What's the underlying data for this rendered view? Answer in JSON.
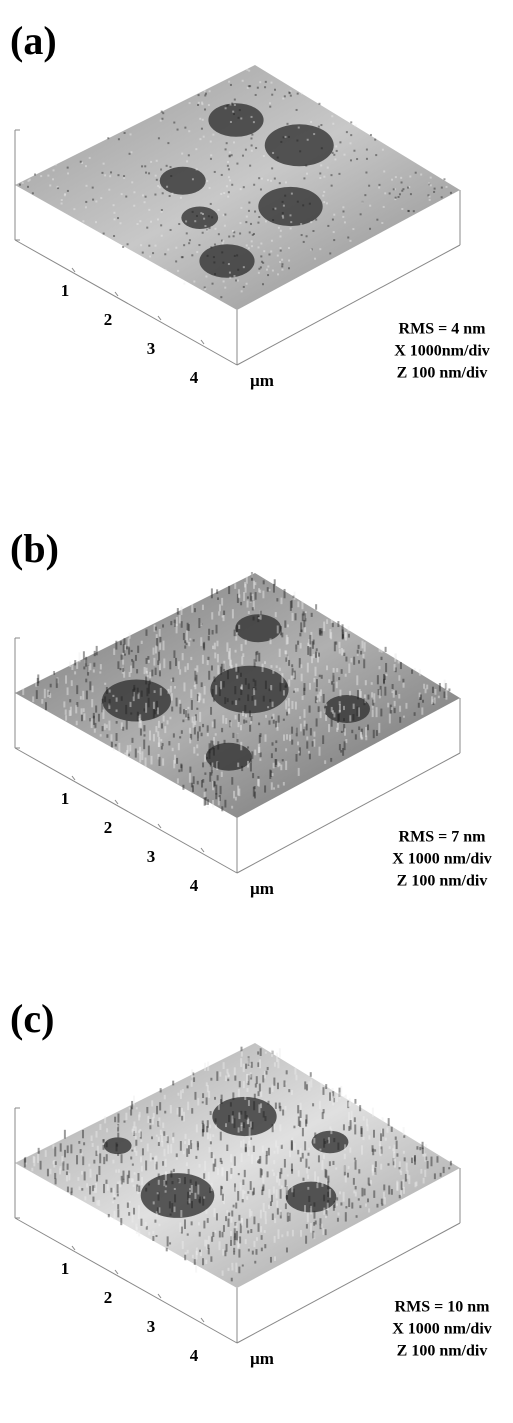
{
  "panels": [
    {
      "label": "(a)",
      "ticks": [
        "1",
        "2",
        "3",
        "4"
      ],
      "unit": "µm",
      "annotations": [
        "RMS = 4 nm",
        "X 1000nm/div",
        "Z 100 nm/div"
      ]
    },
    {
      "label": "(b)",
      "ticks": [
        "1",
        "2",
        "3",
        "4"
      ],
      "unit": "µm",
      "annotations": [
        "RMS = 7 nm",
        "X 1000 nm/div",
        "Z 100 nm/div"
      ]
    },
    {
      "label": "(c)",
      "ticks": [
        "1",
        "2",
        "3",
        "4"
      ],
      "unit": "µm",
      "annotations": [
        "RMS = 10 nm",
        "X 1000 nm/div",
        "Z 100 nm/div"
      ]
    }
  ]
}
